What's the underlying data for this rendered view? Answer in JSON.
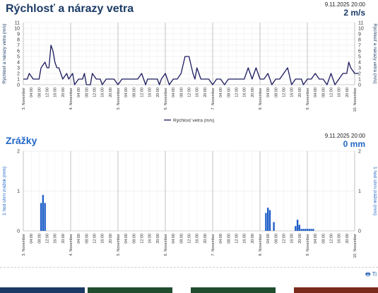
{
  "wind": {
    "title": "Rýchlosť a nárazy vetra",
    "timestamp": "9.11.2025 20:00",
    "current_value": "2 m/s",
    "line_color": "#1a1a5e"
  },
  "precip": {
    "title": "Zrážky",
    "timestamp": "9.11.2025 20:00",
    "current_value": "0 mm",
    "bar_color": "#1f5fc8"
  },
  "print_label": "Ti",
  "bottom_bar_colors": [
    "#1b3b66",
    "#1f4d2e",
    "#1f4d2e",
    "#7a2a1a"
  ],
  "chart_data": [
    {
      "type": "line",
      "title": "Rýchlosť a nárazy vetra",
      "ylabel": "Rýchlosť a nárazy vetra (m/s)",
      "ylim": [
        0,
        11
      ],
      "yticks": [
        0,
        1,
        2,
        3,
        4,
        5,
        6,
        7,
        8,
        9,
        10,
        11
      ],
      "grid": true,
      "legend": "bottom-center",
      "day_labels": [
        "3. November",
        "4. November",
        "5. November",
        "6. November",
        "7. November",
        "8. November",
        "9. November",
        "10. November"
      ],
      "hour_labels": [
        "04:00",
        "08:00",
        "12:00",
        "16:00",
        "20:00"
      ],
      "series": [
        {
          "name": "Rýchlosť vetra (m/s)",
          "x_hours": [
            0,
            2,
            3,
            5,
            6,
            8,
            9,
            11,
            12,
            13,
            14,
            15,
            16,
            17,
            18,
            20,
            22,
            23,
            25,
            26,
            28,
            30,
            31,
            32,
            34,
            35,
            37,
            39,
            40,
            42,
            44,
            46,
            48,
            50,
            52,
            54,
            56,
            58,
            60,
            62,
            63,
            64,
            66,
            68,
            69,
            70,
            72,
            74,
            76,
            78,
            80,
            82,
            84,
            86,
            87,
            88,
            90,
            91,
            92,
            94,
            96,
            98,
            100,
            102,
            104,
            106,
            108,
            110,
            112,
            114,
            116,
            118,
            120,
            122,
            124,
            126,
            128,
            130,
            132,
            134,
            136,
            138,
            140,
            141,
            142,
            144,
            146,
            148,
            150,
            152,
            154,
            156,
            158,
            160,
            162,
            164,
            165,
            166,
            168,
            169,
            170
          ],
          "values": [
            1,
            1,
            2,
            1,
            1,
            1,
            3,
            4,
            3,
            3,
            7,
            6,
            4,
            3,
            3,
            1,
            2,
            1,
            2,
            0,
            1,
            1,
            2,
            0,
            0,
            2,
            1,
            1,
            0,
            1,
            1,
            1,
            0,
            1,
            1,
            1,
            1,
            1,
            2,
            0,
            1,
            1,
            1,
            1,
            0,
            1,
            2,
            0,
            1,
            1,
            2,
            5,
            5,
            2,
            1,
            3,
            1,
            1,
            1,
            1,
            0,
            1,
            1,
            0,
            1,
            1,
            1,
            1,
            1,
            3,
            1,
            3,
            1,
            1,
            2,
            0,
            1,
            1,
            2,
            3,
            0,
            1,
            1,
            1,
            0,
            1,
            1,
            2,
            1,
            1,
            0,
            2,
            0,
            1,
            2,
            2,
            4,
            3,
            2,
            2,
            2
          ]
        }
      ]
    },
    {
      "type": "bar",
      "title": "Zrážky",
      "ylabel": "1 hod úhrn zrážok (mm)",
      "ylim": [
        0,
        2
      ],
      "yticks": [
        0,
        1,
        2
      ],
      "grid": true,
      "day_labels": [
        "3. November",
        "4. November",
        "5. November",
        "6. November",
        "7. November",
        "8. November",
        "9. November",
        "10. November"
      ],
      "hour_labels": [
        "04:00",
        "08:00",
        "12:00",
        "16:00",
        "20:00"
      ],
      "x_hours": [
        9,
        10,
        11,
        123,
        124,
        125,
        127,
        138,
        139,
        140,
        141,
        142,
        143,
        144,
        145,
        146,
        147
      ],
      "values": [
        0.7,
        0.9,
        0.7,
        0.45,
        0.58,
        0.52,
        0.22,
        0.12,
        0.28,
        0.15,
        0.05,
        0.05,
        0.05,
        0.05,
        0.05,
        0.05,
        0.05
      ]
    }
  ]
}
